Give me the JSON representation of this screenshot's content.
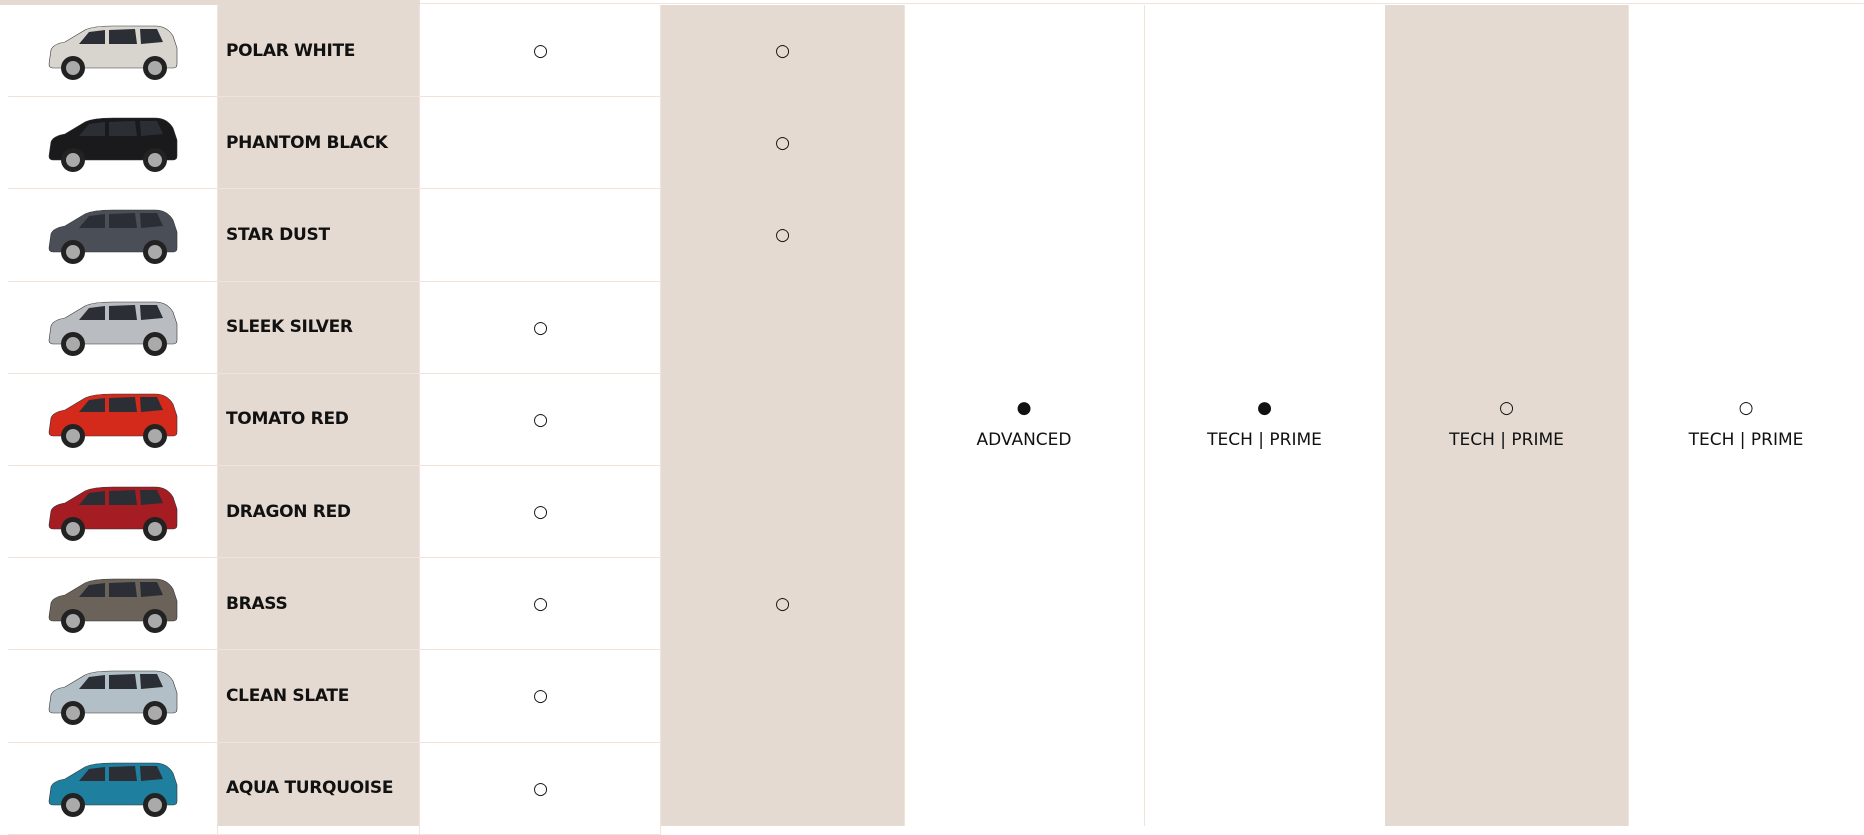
{
  "table": {
    "rows": [
      {
        "name": "POLAR WHITE",
        "cells": [
          "○",
          "○"
        ]
      },
      {
        "name": "PHANTOM BLACK",
        "cells": [
          null,
          "○"
        ]
      },
      {
        "name": "STAR DUST",
        "cells": [
          null,
          "○"
        ]
      },
      {
        "name": "SLEEK SILVER",
        "cells": [
          "○",
          null
        ]
      },
      {
        "name": "TOMATO RED",
        "cells": [
          "○",
          null
        ]
      },
      {
        "name": "DRAGON RED",
        "cells": [
          "○",
          null
        ]
      },
      {
        "name": "BRASS",
        "cells": [
          "○",
          "○"
        ]
      },
      {
        "name": "CLEAN SLATE",
        "cells": [
          "○",
          null
        ]
      },
      {
        "name": "AQUA TURQUOISE",
        "cells": [
          "○",
          null
        ]
      }
    ],
    "merged": [
      {
        "mark": "●",
        "label": "ADVANCED"
      },
      {
        "mark": "●",
        "label": "TECH | PRIME"
      },
      {
        "mark": "○",
        "label": "TECH | PRIME"
      },
      {
        "mark": "○",
        "label": "TECH | PRIME"
      }
    ]
  }
}
